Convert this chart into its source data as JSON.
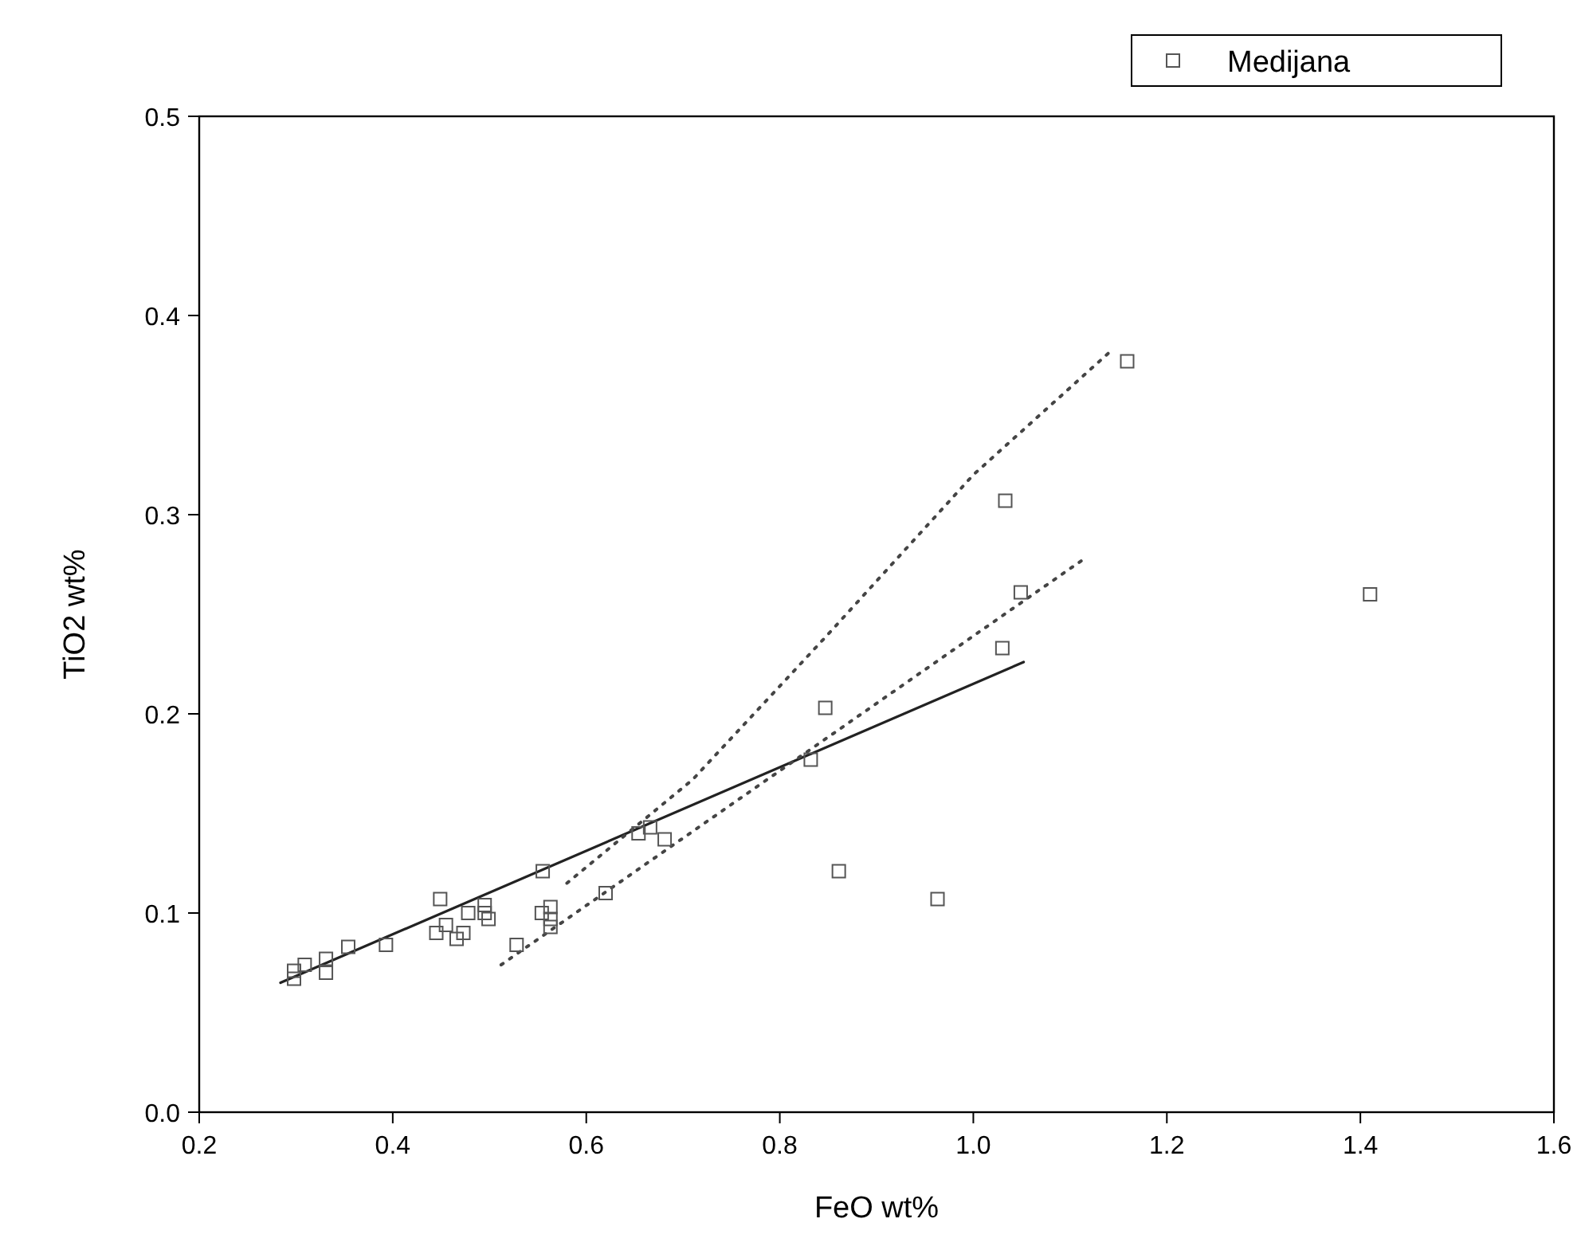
{
  "chart_data": {
    "type": "scatter",
    "xlabel": "FeO wt%",
    "ylabel": "TiO2 wt%",
    "xlim": [
      0.2,
      1.6
    ],
    "xticks": [
      0.2,
      0.4,
      0.6,
      0.8,
      {
        "value": 1.0,
        "label": "1.0"
      },
      1.2,
      1.4,
      1.6
    ],
    "ylim": [
      0,
      0.5
    ],
    "yticks": [
      {
        "value": 0,
        "label": "0.0"
      },
      0.1,
      0.2,
      0.3,
      0.4,
      0.5
    ],
    "grid": false,
    "legend": "top right",
    "series": [
      {
        "name": "Medijana",
        "color": "#555555",
        "marker": "square",
        "x": [
          0.298,
          0.298,
          0.309,
          0.331,
          0.331,
          0.354,
          0.393,
          0.449,
          0.445,
          0.455,
          0.466,
          0.473,
          0.478,
          0.495,
          0.495,
          0.499,
          0.528,
          0.555,
          0.554,
          0.563,
          0.563,
          0.563,
          0.62,
          0.654,
          0.666,
          0.681,
          0.847,
          0.832,
          1.049,
          1.03,
          0.861,
          0.963,
          1.159,
          1.033,
          1.41
        ],
        "values": [
          0.071,
          0.067,
          0.074,
          0.077,
          0.07,
          0.083,
          0.084,
          0.107,
          0.09,
          0.094,
          0.087,
          0.09,
          0.1,
          0.104,
          0.1,
          0.097,
          0.084,
          0.121,
          0.1,
          0.103,
          0.097,
          0.093,
          0.11,
          0.14,
          0.143,
          0.137,
          0.203,
          0.177,
          0.261,
          0.233,
          0.121,
          0.107,
          0.377,
          0.307,
          0.26
        ]
      },
      {
        "type": "line",
        "color": "#222222",
        "line_style": "solid",
        "marker": "none",
        "x": [
          0.284,
          1.052
        ],
        "values": [
          0.065,
          0.226
        ]
      },
      {
        "type": "line",
        "color": "#444444",
        "line_style": "dotted",
        "marker": "none",
        "x": [
          0.58,
          0.71,
          0.85,
          1.0,
          1.144
        ],
        "values": [
          0.115,
          0.167,
          0.24,
          0.32,
          0.383
        ]
      },
      {
        "type": "line",
        "color": "#444444",
        "line_style": "dotted",
        "marker": "none",
        "x": [
          0.512,
          1.118
        ],
        "values": [
          0.074,
          0.279
        ]
      }
    ]
  }
}
